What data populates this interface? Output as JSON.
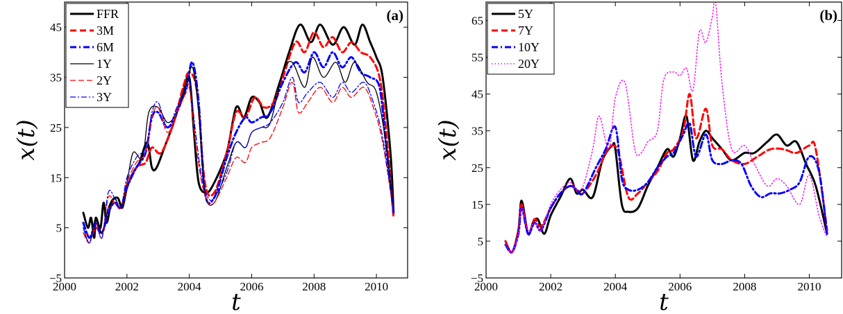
{
  "chart_data": [
    {
      "type": "line",
      "panel": "(a)",
      "xlabel": "t",
      "ylabel": "x(t)",
      "xlim": [
        2000,
        2011
      ],
      "ylim": [
        -5,
        50
      ],
      "xticks": [
        "2000",
        "2002",
        "2004",
        "2006",
        "2008",
        "2010"
      ],
      "yticks": [
        "−5",
        "5",
        "15",
        "25",
        "35",
        "45"
      ],
      "legend_position": "top-left",
      "series": [
        {
          "name": "FFR",
          "color": "#000000",
          "style": "solid-thick",
          "x": [
            2000.6,
            2000.75,
            2000.85,
            2000.95,
            2001.0,
            2001.15,
            2001.25,
            2001.35,
            2001.5,
            2001.7,
            2001.85,
            2002.0,
            2002.2,
            2002.4,
            2002.65,
            2002.8,
            2002.95,
            2003.2,
            2003.5,
            2003.8,
            2004.0,
            2004.15,
            2004.3,
            2004.55,
            2004.8,
            2005.2,
            2005.5,
            2005.75,
            2006.0,
            2006.25,
            2006.5,
            2006.9,
            2007.2,
            2007.55,
            2007.9,
            2008.2,
            2008.6,
            2008.95,
            2009.3,
            2009.55,
            2009.8,
            2010.0,
            2010.2,
            2010.45,
            2010.55
          ],
          "y": [
            8,
            5,
            7,
            3,
            7,
            5,
            10,
            6,
            10,
            11,
            9,
            13,
            16,
            18,
            22,
            17,
            17,
            21,
            26,
            32,
            35,
            24,
            14,
            12,
            14,
            20,
            29,
            27,
            31,
            30,
            27,
            34,
            40,
            45.5,
            42,
            45.5,
            41.5,
            45,
            41.5,
            45.5,
            42,
            39,
            35,
            20,
            8
          ]
        },
        {
          "name": "3M",
          "color": "#ff0000",
          "style": "dashed-thick",
          "x": [
            2000.6,
            2000.8,
            2001.0,
            2001.2,
            2001.4,
            2001.6,
            2001.8,
            2002.0,
            2002.3,
            2002.6,
            2002.8,
            2003.1,
            2003.5,
            2003.8,
            2004.0,
            2004.25,
            2004.5,
            2004.8,
            2005.2,
            2005.5,
            2005.8,
            2006.1,
            2006.4,
            2006.7,
            2007.0,
            2007.4,
            2007.7,
            2008.0,
            2008.3,
            2008.6,
            2008.9,
            2009.2,
            2009.5,
            2009.8,
            2010.1,
            2010.3,
            2010.55
          ],
          "y": [
            6,
            3,
            5,
            4,
            8,
            10,
            9,
            13,
            17,
            18,
            21,
            20,
            26,
            33,
            36,
            32,
            14,
            12,
            20,
            28,
            27,
            31,
            29,
            30,
            35,
            42,
            40,
            44,
            41,
            43,
            40,
            42,
            40,
            39,
            35,
            25,
            7
          ]
        },
        {
          "name": "6M",
          "color": "#0000ff",
          "style": "dashdot-thick",
          "x": [
            2000.6,
            2000.8,
            2001.0,
            2001.2,
            2001.4,
            2001.6,
            2001.8,
            2002.0,
            2002.3,
            2002.6,
            2002.8,
            2003.0,
            2003.3,
            2003.6,
            2003.9,
            2004.1,
            2004.3,
            2004.5,
            2004.8,
            2005.2,
            2005.5,
            2005.8,
            2006.0,
            2006.3,
            2006.6,
            2007.0,
            2007.4,
            2007.7,
            2008.0,
            2008.3,
            2008.6,
            2008.9,
            2009.2,
            2009.5,
            2009.8,
            2010.1,
            2010.3,
            2010.55
          ],
          "y": [
            6,
            3,
            6,
            4,
            8,
            10,
            9,
            13,
            17,
            20,
            27,
            28,
            25,
            28,
            33,
            38,
            30,
            12,
            11,
            19,
            24,
            27,
            26,
            27,
            28,
            34,
            38,
            36,
            40,
            37,
            40,
            37,
            39,
            36,
            35,
            33,
            22,
            8
          ]
        },
        {
          "name": "1Y",
          "color": "#000000",
          "style": "solid-thin",
          "x": [
            2000.6,
            2000.8,
            2001.0,
            2001.2,
            2001.4,
            2001.6,
            2001.8,
            2002.0,
            2002.2,
            2002.5,
            2002.7,
            2003.0,
            2003.3,
            2003.6,
            2003.9,
            2004.1,
            2004.3,
            2004.5,
            2004.8,
            2005.2,
            2005.5,
            2005.8,
            2006.0,
            2006.3,
            2006.6,
            2007.0,
            2007.3,
            2007.7,
            2007.95,
            2008.3,
            2008.7,
            2009.0,
            2009.3,
            2009.7,
            2010.0,
            2010.3,
            2010.55
          ],
          "y": [
            5,
            2,
            7,
            4,
            9,
            11,
            9,
            14,
            20,
            19,
            28,
            29,
            26,
            28,
            33,
            37,
            28,
            12,
            10,
            17,
            22,
            21,
            24,
            25,
            26,
            36,
            38,
            33,
            39,
            35,
            38,
            34,
            38,
            34,
            32,
            22,
            8
          ]
        },
        {
          "name": "2Y",
          "color": "#ff0000",
          "style": "dashed-thin",
          "x": [
            2000.6,
            2000.8,
            2001.0,
            2001.2,
            2001.4,
            2001.6,
            2001.8,
            2002.0,
            2002.3,
            2002.6,
            2002.8,
            2003.0,
            2003.3,
            2003.6,
            2003.9,
            2004.0,
            2004.2,
            2004.4,
            2004.6,
            2004.8,
            2005.2,
            2005.5,
            2005.8,
            2006.0,
            2006.3,
            2006.6,
            2007.0,
            2007.3,
            2007.5,
            2007.8,
            2008.2,
            2008.6,
            2008.9,
            2009.2,
            2009.6,
            2009.9,
            2010.2,
            2010.55
          ],
          "y": [
            4,
            2,
            6,
            3,
            11,
            10,
            9,
            14,
            18,
            20,
            27,
            29,
            24,
            28,
            32,
            33,
            22,
            14,
            10,
            10,
            15,
            19,
            18,
            21,
            22,
            23,
            29,
            34,
            28,
            30,
            33,
            30,
            33,
            31,
            33,
            29,
            22,
            8
          ]
        },
        {
          "name": "3Y",
          "color": "#0000ff",
          "style": "dashdot-thin",
          "x": [
            2000.6,
            2000.8,
            2001.0,
            2001.2,
            2001.4,
            2001.6,
            2001.8,
            2002.0,
            2002.3,
            2002.6,
            2002.8,
            2003.0,
            2003.3,
            2003.6,
            2003.9,
            2004.0,
            2004.2,
            2004.4,
            2004.6,
            2004.8,
            2005.2,
            2005.5,
            2005.8,
            2006.0,
            2006.3,
            2006.6,
            2007.0,
            2007.3,
            2007.5,
            2007.8,
            2008.2,
            2008.6,
            2008.9,
            2009.2,
            2009.6,
            2009.9,
            2010.2,
            2010.55
          ],
          "y": [
            5,
            2,
            6,
            3,
            12,
            11,
            9,
            15,
            19,
            21,
            28,
            30,
            25,
            29,
            33,
            35,
            24,
            15,
            11,
            11,
            16,
            22,
            21,
            24,
            25,
            26,
            30,
            35,
            30,
            32,
            34,
            31,
            34,
            32,
            34,
            30,
            23,
            8
          ]
        }
      ]
    },
    {
      "type": "line",
      "panel": "(b)",
      "xlabel": "t",
      "ylabel": "x(t)",
      "xlim": [
        2000,
        2011
      ],
      "ylim": [
        -5,
        70
      ],
      "xticks": [
        "2000",
        "2002",
        "2004",
        "2006",
        "2008",
        "2010"
      ],
      "yticks": [
        "−5",
        "5",
        "15",
        "25",
        "35",
        "45",
        "55",
        "65"
      ],
      "legend_position": "top-left",
      "series": [
        {
          "name": "5Y",
          "color": "#000000",
          "style": "solid-thick",
          "x": [
            2000.6,
            2000.8,
            2001.0,
            2001.1,
            2001.3,
            2001.45,
            2001.6,
            2001.8,
            2002.0,
            2002.3,
            2002.6,
            2002.8,
            2003.0,
            2003.3,
            2003.6,
            2003.9,
            2004.0,
            2004.2,
            2004.4,
            2004.7,
            2005.0,
            2005.3,
            2005.6,
            2005.8,
            2006.0,
            2006.2,
            2006.4,
            2006.6,
            2006.8,
            2007.0,
            2007.3,
            2007.6,
            2008.0,
            2008.3,
            2008.7,
            2009.0,
            2009.3,
            2009.6,
            2009.9,
            2010.2,
            2010.55
          ],
          "y": [
            5,
            2,
            8,
            16,
            7,
            10,
            11,
            7,
            12,
            17,
            22,
            18,
            19,
            17,
            27,
            31,
            30,
            15,
            13,
            14,
            20,
            25,
            30,
            28,
            33,
            39,
            27,
            32,
            35,
            33,
            30,
            27,
            29,
            29,
            32,
            34,
            31,
            32,
            26,
            20,
            7
          ]
        },
        {
          "name": "7Y",
          "color": "#ff0000",
          "style": "dashed-thick",
          "x": [
            2000.6,
            2000.8,
            2001.0,
            2001.1,
            2001.3,
            2001.5,
            2001.7,
            2002.0,
            2002.3,
            2002.6,
            2002.8,
            2003.0,
            2003.4,
            2003.7,
            2003.9,
            2004.1,
            2004.4,
            2004.7,
            2005.0,
            2005.3,
            2005.6,
            2005.8,
            2006.1,
            2006.3,
            2006.5,
            2006.8,
            2007.0,
            2007.3,
            2007.6,
            2008.0,
            2008.4,
            2008.8,
            2009.2,
            2009.6,
            2010.0,
            2010.2,
            2010.55
          ],
          "y": [
            5,
            2,
            8,
            15,
            7,
            11,
            9,
            14,
            18,
            20,
            19,
            18,
            23,
            29,
            31,
            29,
            17,
            18,
            21,
            24,
            29,
            30,
            35,
            45,
            33,
            41,
            31,
            30,
            27,
            26,
            28,
            30,
            30,
            29,
            31,
            30,
            8
          ]
        },
        {
          "name": "10Y",
          "color": "#0000ff",
          "style": "dashdot-thick",
          "x": [
            2000.6,
            2000.8,
            2001.0,
            2001.1,
            2001.3,
            2001.5,
            2001.7,
            2002.0,
            2002.3,
            2002.6,
            2002.8,
            2003.0,
            2003.4,
            2003.7,
            2004.0,
            2004.2,
            2004.4,
            2004.7,
            2005.0,
            2005.3,
            2005.6,
            2005.8,
            2006.1,
            2006.3,
            2006.5,
            2006.8,
            2007.0,
            2007.3,
            2007.6,
            2007.9,
            2008.2,
            2008.5,
            2008.8,
            2009.1,
            2009.4,
            2009.7,
            2010.0,
            2010.3,
            2010.55
          ],
          "y": [
            4,
            2,
            7,
            14,
            7,
            10,
            8,
            14,
            18,
            20,
            19,
            18,
            25,
            30,
            36,
            22,
            19,
            19,
            21,
            25,
            28,
            29,
            34,
            37,
            28,
            34,
            27,
            26,
            27,
            26,
            20,
            17,
            18,
            18,
            19,
            21,
            28,
            24,
            7
          ]
        },
        {
          "name": "20Y",
          "color": "#ff00ff",
          "style": "dotted",
          "x": [
            2000.6,
            2000.8,
            2001.0,
            2001.1,
            2001.3,
            2001.5,
            2001.7,
            2002.0,
            2002.3,
            2002.6,
            2002.8,
            2003.0,
            2003.3,
            2003.5,
            2003.8,
            2004.0,
            2004.3,
            2004.6,
            2004.8,
            2005.0,
            2005.3,
            2005.5,
            2005.8,
            2006.0,
            2006.2,
            2006.4,
            2006.6,
            2006.8,
            2007.0,
            2007.1,
            2007.3,
            2007.6,
            2008.0,
            2008.3,
            2008.7,
            2009.0,
            2009.3,
            2009.7,
            2010.0,
            2010.3,
            2010.55
          ],
          "y": [
            4,
            2,
            7,
            14,
            8,
            10,
            8,
            15,
            19,
            21,
            19,
            20,
            30,
            39,
            30,
            44,
            48,
            30,
            29,
            32,
            35,
            49,
            51,
            50,
            52,
            46,
            62,
            59,
            66,
            70,
            48,
            30,
            31,
            26,
            20,
            22,
            20,
            15,
            23,
            12,
            6
          ]
        }
      ]
    }
  ]
}
